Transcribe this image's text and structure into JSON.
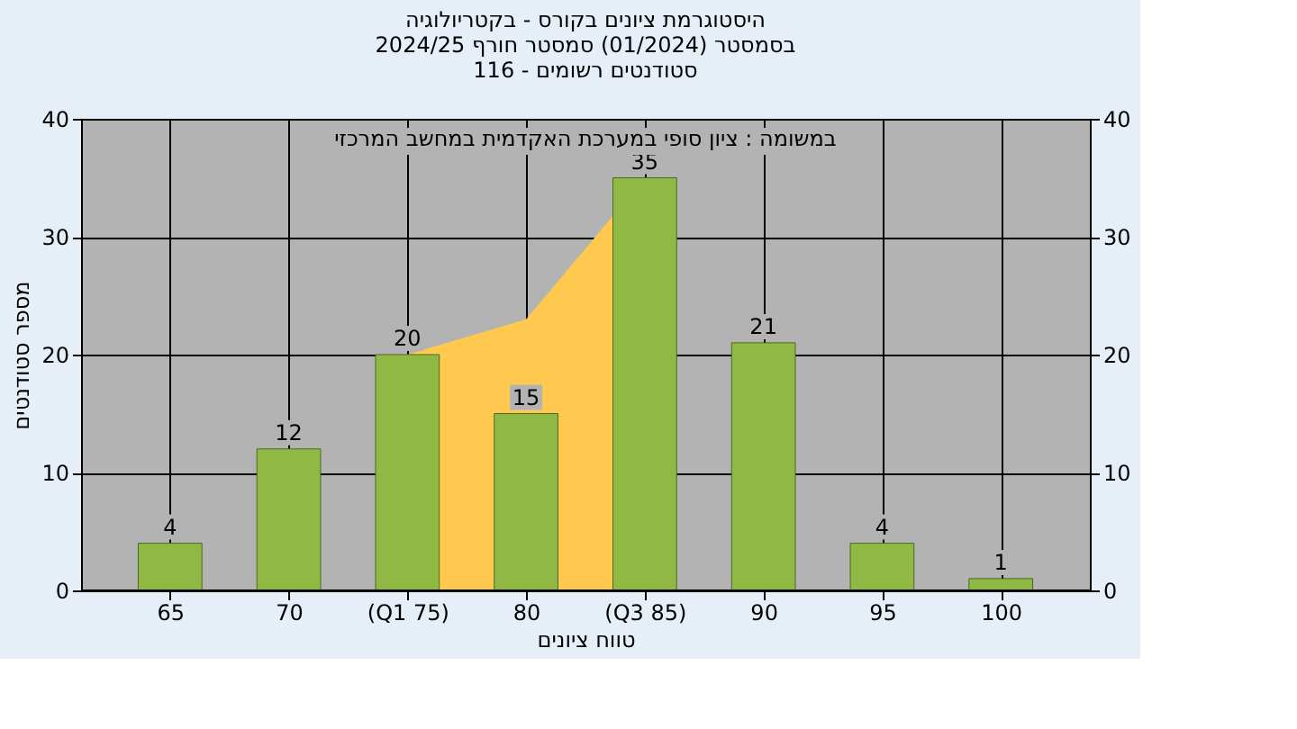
{
  "chart_data": {
    "type": "bar",
    "title": [
      "היסטוגרמת ציונים בקורס - בקטריולוגיה",
      "בסמסטר  (01/2024)  סמסטר חורף 2024/25",
      "סטודנטים רשומים - 116"
    ],
    "xlabel": "טווח ציונים",
    "ylabel": "מספר סטודנטים",
    "annotations": [
      "במשומה : ציון סופי במערכת האקדמית במחשב המרכזי"
    ],
    "categories": [
      "65",
      "70",
      "(Q1 75)",
      "80",
      "(Q3 85)",
      "90",
      "95",
      "100"
    ],
    "series": [
      {
        "type": "area",
        "color": "#ffc94f",
        "values": [
          null,
          null,
          20,
          23,
          35,
          null,
          null,
          null
        ]
      },
      {
        "color": "#8fb845",
        "values": [
          4,
          12,
          20,
          15,
          35,
          21,
          4,
          1
        ],
        "value_labels": [
          "4",
          "12",
          "20",
          "15",
          "35",
          "21",
          "4",
          "1"
        ]
      }
    ],
    "ylim": [
      0,
      40
    ],
    "yticks": [
      0,
      10,
      20,
      30,
      40
    ],
    "y2lim": [
      0,
      40
    ],
    "y2ticks": [
      0,
      10,
      20,
      30,
      40
    ],
    "grid": true
  }
}
